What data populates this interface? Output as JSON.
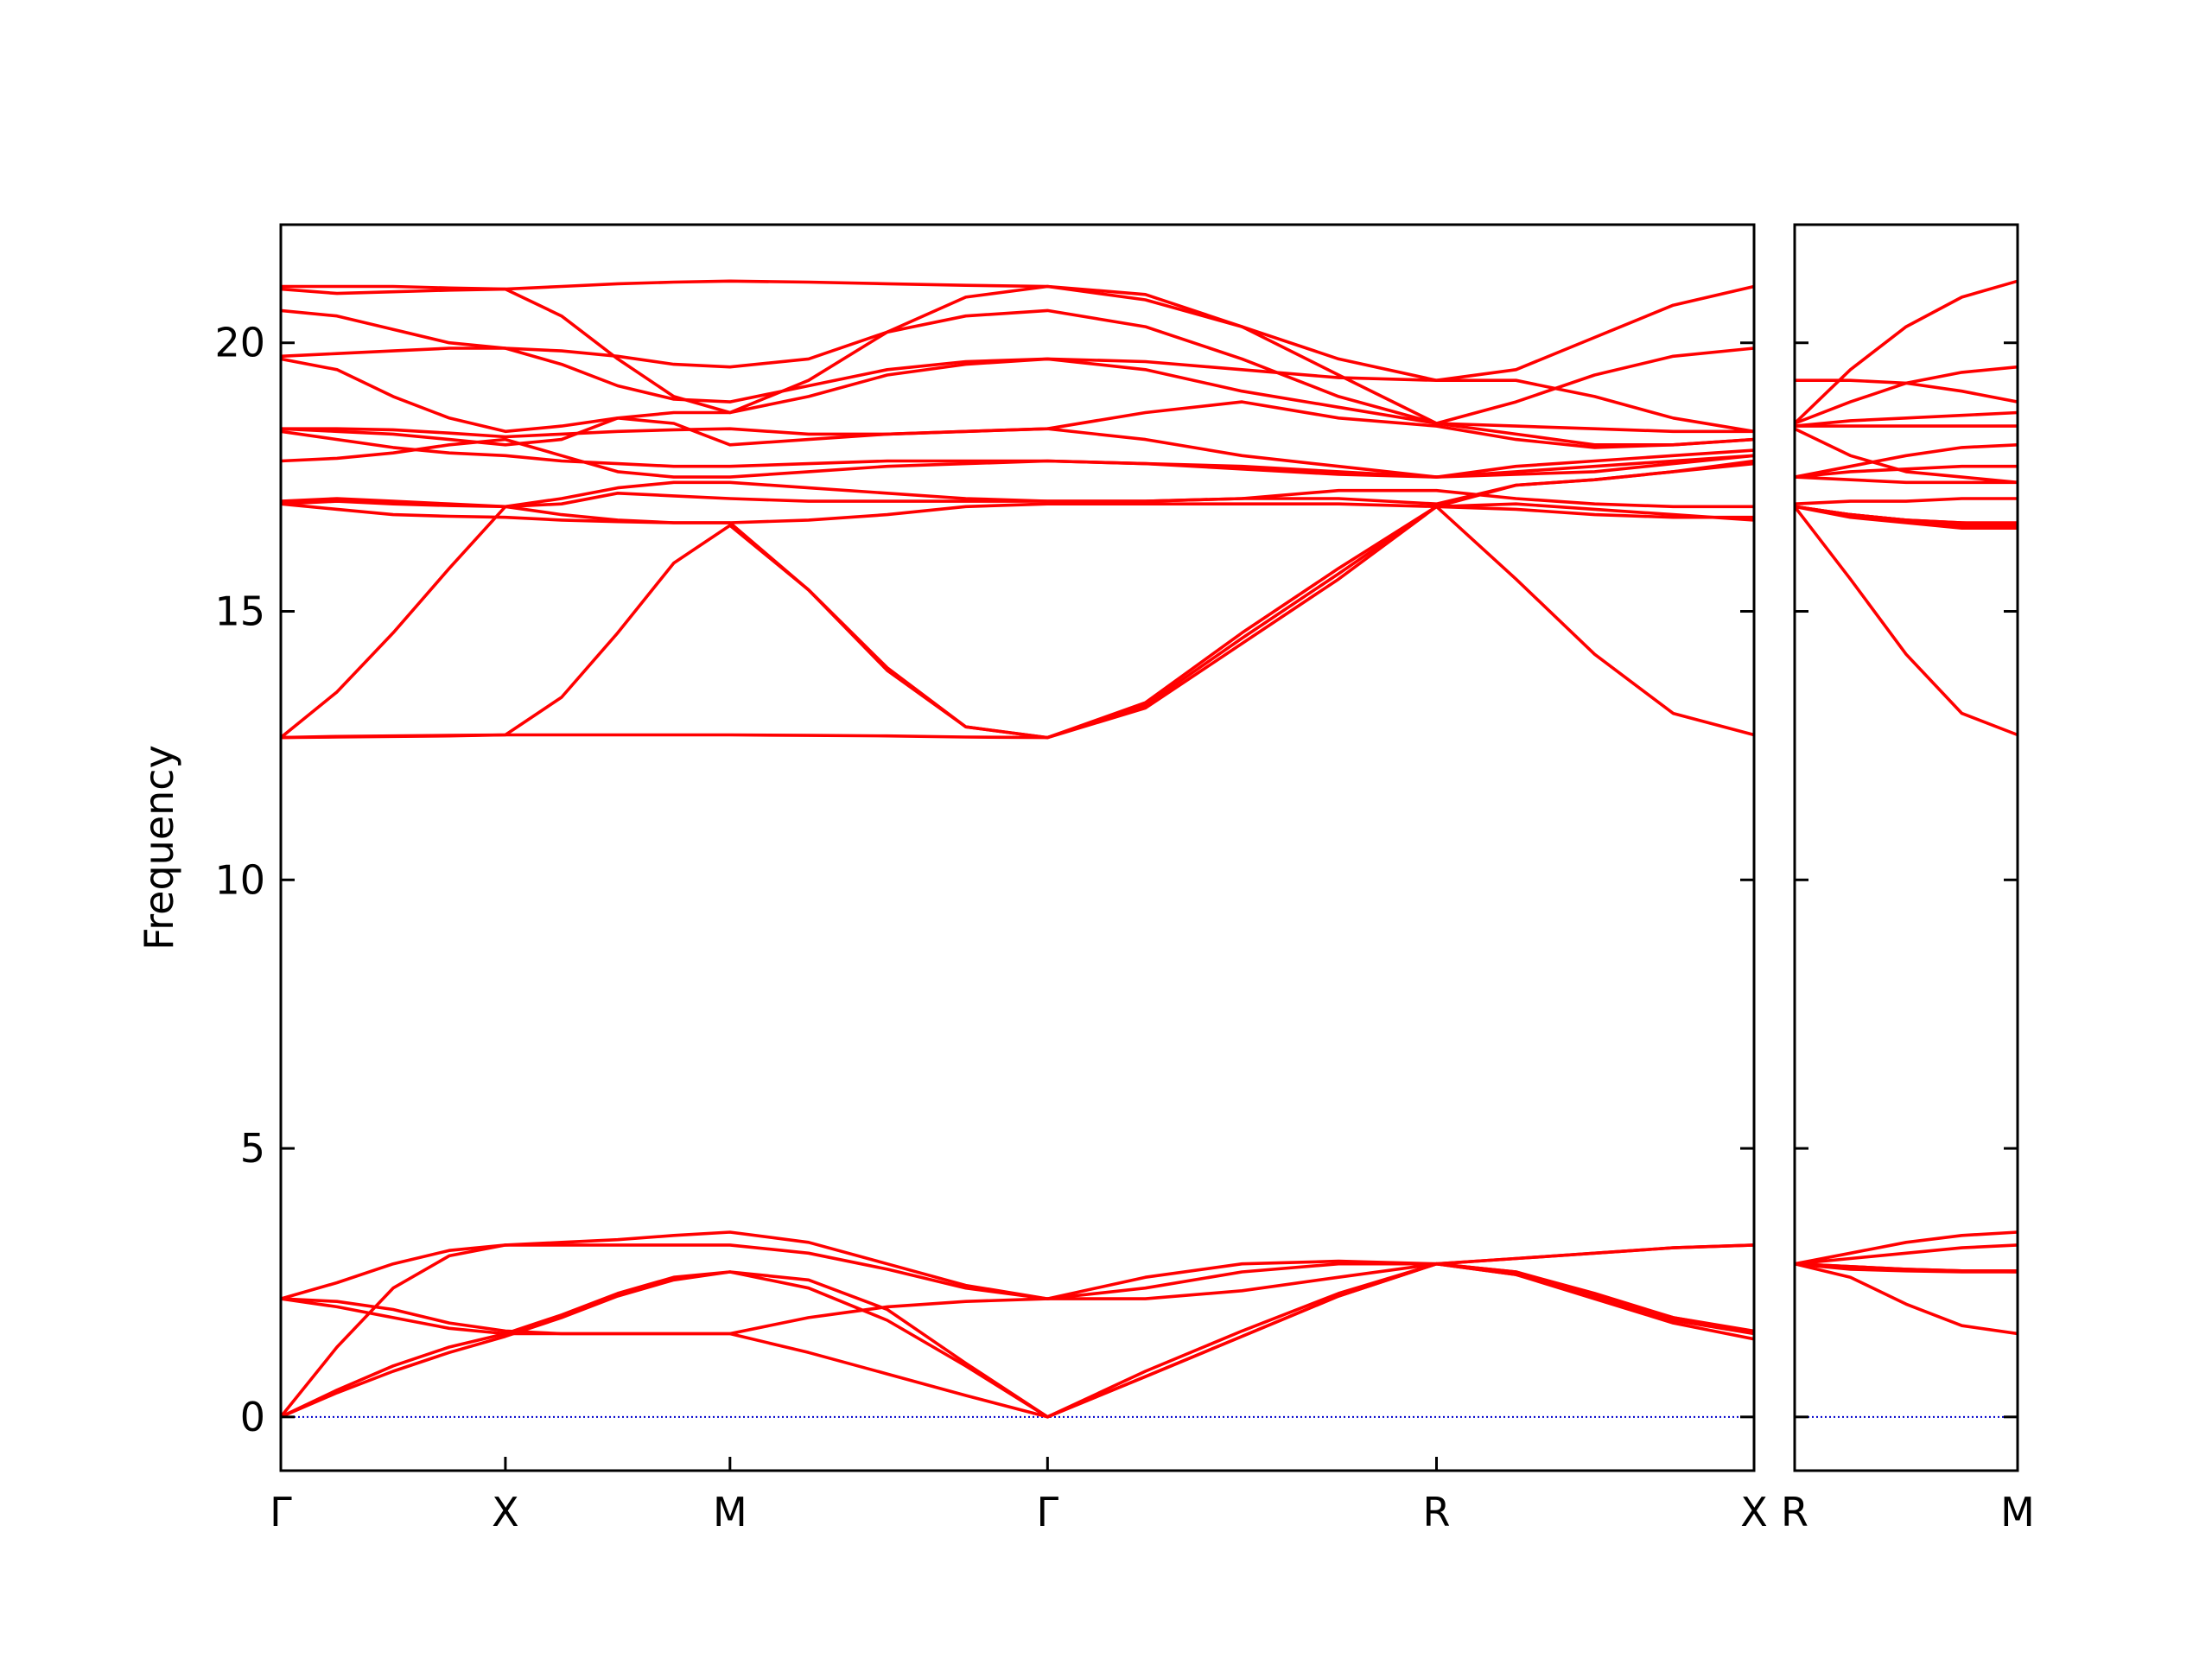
{
  "chart_data": [
    {
      "type": "line",
      "ylabel": "Frequency",
      "color": "#ff0000",
      "zero_line_color": "#0000cd",
      "ylim": [
        -1.0,
        22.2
      ],
      "yticks": [
        0,
        5,
        10,
        15,
        20
      ],
      "show_ytick_labels": true,
      "xlim": [
        0,
        6.56
      ],
      "xticks": [
        {
          "value": 0,
          "label": "Γ"
        },
        {
          "value": 1,
          "label": "X"
        },
        {
          "value": 2,
          "label": "M"
        },
        {
          "value": 3.414,
          "label": "Γ"
        },
        {
          "value": 5.146,
          "label": "R"
        },
        {
          "value": 6.56,
          "label": "X"
        }
      ],
      "x": [
        0,
        0.25,
        0.5,
        0.75,
        1,
        1.25,
        1.5,
        1.75,
        2,
        2.35,
        2.7,
        3.05,
        3.414,
        3.85,
        4.28,
        4.71,
        5.146,
        5.5,
        5.85,
        6.2,
        6.56
      ],
      "series": [
        {
          "values": [
            0,
            1.3,
            2.4,
            3.0,
            3.2,
            3.25,
            3.3,
            3.38,
            3.44,
            3.25,
            2.85,
            2.45,
            2.2,
            2.6,
            2.85,
            2.9,
            2.85,
            2.95,
            3.05,
            3.15,
            3.2
          ]
        },
        {
          "values": [
            2.2,
            2.5,
            2.85,
            3.1,
            3.2,
            3.2,
            3.2,
            3.2,
            3.2,
            3.05,
            2.75,
            2.4,
            2.2,
            2.4,
            2.7,
            2.85,
            2.85,
            2.95,
            3.05,
            3.15,
            3.2
          ]
        },
        {
          "values": [
            0,
            0.5,
            0.95,
            1.3,
            1.55,
            1.9,
            2.3,
            2.6,
            2.7,
            2.55,
            2.0,
            1.0,
            0,
            0.85,
            1.6,
            2.3,
            2.85,
            2.7,
            2.3,
            1.85,
            1.6
          ]
        },
        {
          "values": [
            0,
            0.45,
            0.85,
            1.2,
            1.5,
            1.85,
            2.25,
            2.55,
            2.7,
            2.4,
            1.8,
            0.95,
            0,
            0.75,
            1.5,
            2.25,
            2.85,
            2.65,
            2.25,
            1.8,
            1.55
          ]
        },
        {
          "values": [
            2.2,
            2.05,
            1.85,
            1.65,
            1.55,
            1.55,
            1.55,
            1.55,
            1.55,
            1.2,
            0.8,
            0.4,
            0,
            0.75,
            1.5,
            2.25,
            2.85,
            2.65,
            2.2,
            1.75,
            1.45
          ]
        },
        {
          "values": [
            2.2,
            2.15,
            2.0,
            1.75,
            1.6,
            1.55,
            1.55,
            1.55,
            1.55,
            1.85,
            2.05,
            2.15,
            2.2,
            2.2,
            2.35,
            2.6,
            2.85,
            2.7,
            2.25,
            1.85,
            1.58
          ]
        },
        {
          "values": [
            21.05,
            21.05,
            21.05,
            21.02,
            21.0,
            21.05,
            21.1,
            21.13,
            21.15,
            21.13,
            21.1,
            21.07,
            21.05,
            20.8,
            20.3,
            19.7,
            19.3,
            19.5,
            20.1,
            20.7,
            21.05
          ]
        },
        {
          "values": [
            21.0,
            20.92,
            20.95,
            20.98,
            21.0,
            20.5,
            19.7,
            19.0,
            18.7,
            19.3,
            20.2,
            20.85,
            21.05,
            20.9,
            20.3,
            19.4,
            18.5,
            18.3,
            18.1,
            18.1,
            18.2
          ]
        },
        {
          "values": [
            20.6,
            20.5,
            20.25,
            20.0,
            19.9,
            19.85,
            19.75,
            19.6,
            19.55,
            19.7,
            20.2,
            20.5,
            20.6,
            20.3,
            19.7,
            19.0,
            18.5,
            18.9,
            19.4,
            19.75,
            19.9
          ]
        },
        {
          "values": [
            19.75,
            19.8,
            19.85,
            19.9,
            19.9,
            19.6,
            19.2,
            18.95,
            18.9,
            19.2,
            19.5,
            19.65,
            19.7,
            19.5,
            19.1,
            18.8,
            18.5,
            18.45,
            18.4,
            18.35,
            18.35
          ]
        },
        {
          "values": [
            19.7,
            19.5,
            19.0,
            18.6,
            18.35,
            18.45,
            18.6,
            18.7,
            18.7,
            19.0,
            19.4,
            19.6,
            19.7,
            19.65,
            19.5,
            19.35,
            19.3,
            19.3,
            19.0,
            18.6,
            18.35
          ]
        },
        {
          "values": [
            18.4,
            18.4,
            18.38,
            18.32,
            18.25,
            18.3,
            18.35,
            18.38,
            18.4,
            18.3,
            18.3,
            18.35,
            18.4,
            18.7,
            18.9,
            18.6,
            18.45,
            18.2,
            18.05,
            18.1,
            18.2
          ]
        },
        {
          "values": [
            18.4,
            18.35,
            18.3,
            18.2,
            18.1,
            18.2,
            18.6,
            18.5,
            18.1,
            18.2,
            18.3,
            18.35,
            18.4,
            18.2,
            17.9,
            17.7,
            17.5,
            17.7,
            17.8,
            17.9,
            18.0
          ]
        },
        {
          "values": [
            18.35,
            18.2,
            18.05,
            17.95,
            17.9,
            17.8,
            17.75,
            17.7,
            17.7,
            17.75,
            17.8,
            17.8,
            17.8,
            17.75,
            17.7,
            17.6,
            17.5,
            17.6,
            17.7,
            17.8,
            17.9
          ]
        },
        {
          "values": [
            17.8,
            17.85,
            17.95,
            18.1,
            18.2,
            17.9,
            17.6,
            17.5,
            17.5,
            17.6,
            17.7,
            17.75,
            17.8,
            17.75,
            17.65,
            17.55,
            17.5,
            17.55,
            17.6,
            17.75,
            17.9
          ]
        },
        {
          "values": [
            17.05,
            17.1,
            17.05,
            17.0,
            16.95,
            17.1,
            17.3,
            17.4,
            17.4,
            17.3,
            17.2,
            17.1,
            17.05,
            17.05,
            17.1,
            17.25,
            17.25,
            17.1,
            17.0,
            16.95,
            16.95
          ]
        },
        {
          "values": [
            17.0,
            17.05,
            17.0,
            16.97,
            16.95,
            17.0,
            17.2,
            17.15,
            17.1,
            17.05,
            17.05,
            17.05,
            17.05,
            17.05,
            17.1,
            17.1,
            17.0,
            17.35,
            17.45,
            17.6,
            17.75
          ]
        },
        {
          "values": [
            17.0,
            16.9,
            16.8,
            16.77,
            16.75,
            16.7,
            16.67,
            16.65,
            16.65,
            16.7,
            16.8,
            16.95,
            17.0,
            17.0,
            17.0,
            17.0,
            16.95,
            16.9,
            16.8,
            16.75,
            16.75
          ]
        },
        {
          "values": [
            12.65,
            13.5,
            14.6,
            15.8,
            16.95,
            16.8,
            16.7,
            16.65,
            16.65,
            15.4,
            13.9,
            12.85,
            12.65,
            13.3,
            14.6,
            15.8,
            16.95,
            15.6,
            14.2,
            13.1,
            12.7
          ]
        },
        {
          "values": [
            12.65,
            12.66,
            12.67,
            12.68,
            12.7,
            13.4,
            14.6,
            15.9,
            16.6,
            15.4,
            13.95,
            12.85,
            12.65,
            13.25,
            14.5,
            15.7,
            16.95,
            17.35,
            17.45,
            17.6,
            17.8
          ]
        },
        {
          "values": [
            12.65,
            12.67,
            12.68,
            12.69,
            12.7,
            12.7,
            12.7,
            12.7,
            12.7,
            12.69,
            12.68,
            12.66,
            12.65,
            13.2,
            14.4,
            15.6,
            16.95,
            17.0,
            16.9,
            16.8,
            16.7
          ]
        }
      ]
    },
    {
      "type": "line",
      "color": "#ff0000",
      "zero_line_color": "#0000cd",
      "ylim": [
        -1.0,
        22.2
      ],
      "yticks": [
        0,
        5,
        10,
        15,
        20
      ],
      "show_ytick_labels": false,
      "xlim": [
        0,
        1
      ],
      "xticks": [
        {
          "value": 0,
          "label": "R"
        },
        {
          "value": 1,
          "label": "M"
        }
      ],
      "x": [
        0,
        0.25,
        0.5,
        0.75,
        1
      ],
      "series": [
        {
          "values": [
            2.85,
            3.05,
            3.25,
            3.38,
            3.44
          ]
        },
        {
          "values": [
            2.85,
            2.95,
            3.05,
            3.15,
            3.2
          ]
        },
        {
          "values": [
            2.85,
            2.8,
            2.75,
            2.72,
            2.72
          ]
        },
        {
          "values": [
            2.85,
            2.8,
            2.75,
            2.72,
            2.7
          ]
        },
        {
          "values": [
            2.85,
            2.75,
            2.72,
            2.7,
            2.7
          ]
        },
        {
          "values": [
            2.85,
            2.6,
            2.1,
            1.7,
            1.55
          ]
        },
        {
          "values": [
            19.3,
            19.3,
            19.25,
            19.1,
            18.9
          ]
        },
        {
          "values": [
            18.5,
            19.5,
            20.3,
            20.85,
            21.15
          ]
        },
        {
          "values": [
            18.5,
            18.9,
            19.25,
            19.45,
            19.55
          ]
        },
        {
          "values": [
            18.45,
            18.55,
            18.6,
            18.65,
            18.7
          ]
        },
        {
          "values": [
            18.45,
            18.45,
            18.45,
            18.45,
            18.45
          ]
        },
        {
          "values": [
            18.4,
            17.9,
            17.6,
            17.5,
            17.4
          ]
        },
        {
          "values": [
            17.5,
            17.7,
            17.9,
            18.05,
            18.1
          ]
        },
        {
          "values": [
            17.5,
            17.6,
            17.65,
            17.7,
            17.7
          ]
        },
        {
          "values": [
            17.5,
            17.45,
            17.4,
            17.4,
            17.4
          ]
        },
        {
          "values": [
            17.0,
            17.05,
            17.05,
            17.1,
            17.1
          ]
        },
        {
          "values": [
            16.95,
            16.8,
            16.7,
            16.65,
            16.65
          ]
        },
        {
          "values": [
            16.95,
            16.8,
            16.7,
            16.6,
            16.6
          ]
        },
        {
          "values": [
            16.95,
            16.75,
            16.65,
            16.55,
            16.55
          ]
        },
        {
          "values": [
            16.95,
            16.8,
            16.7,
            16.65,
            16.6
          ]
        },
        {
          "values": [
            16.95,
            15.6,
            14.2,
            13.1,
            12.7
          ]
        }
      ]
    }
  ]
}
